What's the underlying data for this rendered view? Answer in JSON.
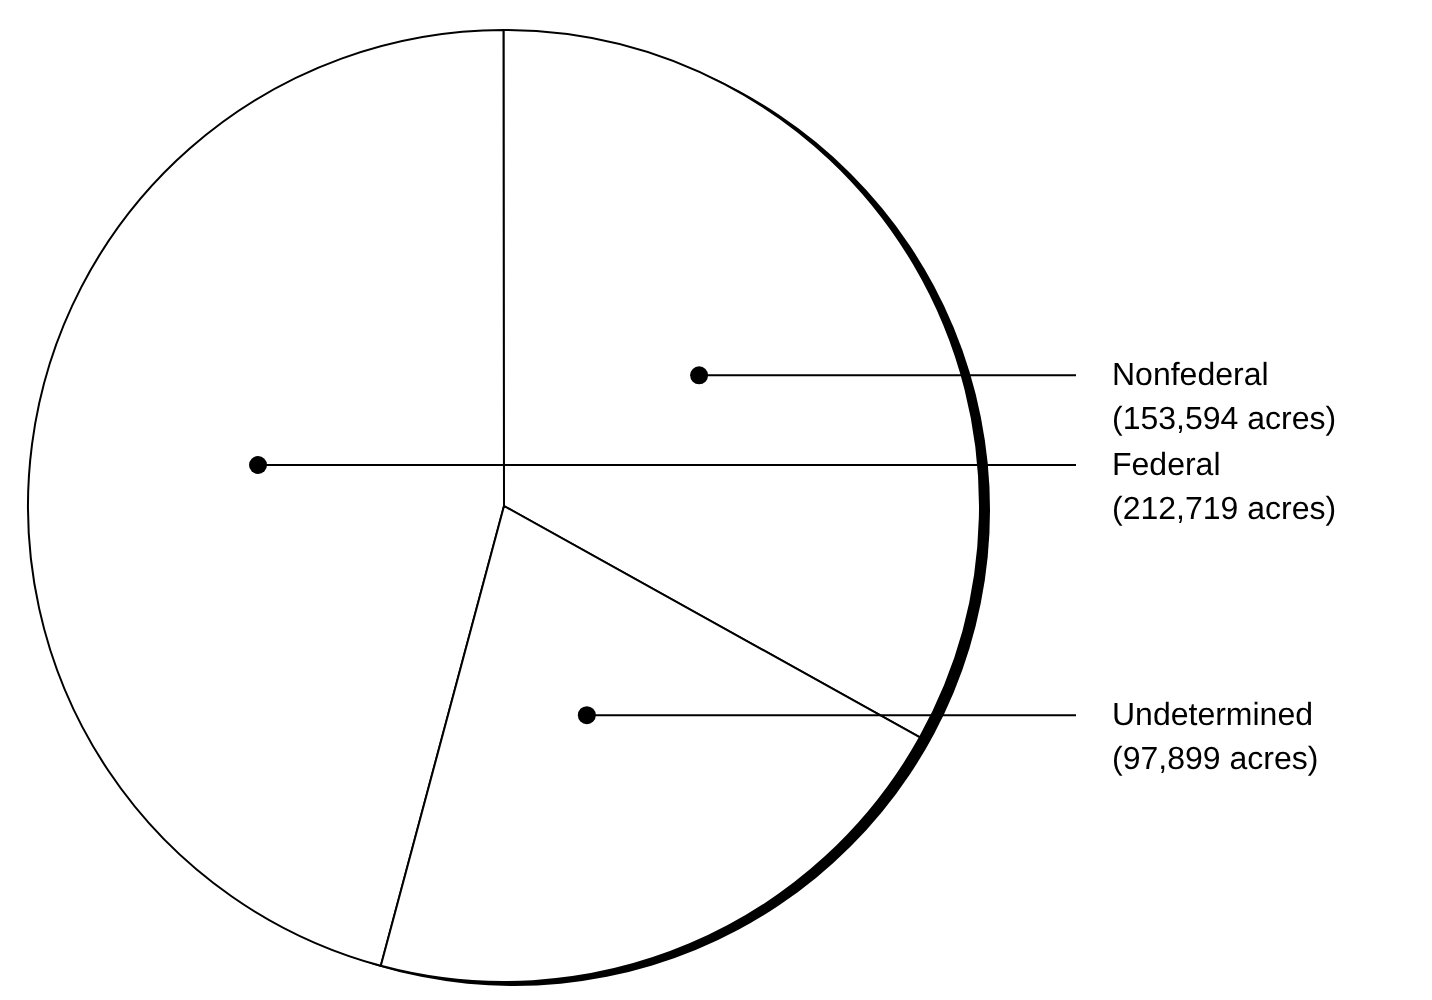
{
  "chart_data": {
    "type": "pie",
    "categories": [
      "Federal",
      "Nonfederal",
      "Undetermined"
    ],
    "values": [
      212719,
      153594,
      97899
    ],
    "value_labels": [
      "(212,719 acres)",
      "(153,594 acres)",
      "(97,899 acres)"
    ],
    "colors": [
      "#ffffff",
      "#ffffff",
      "#ffffff"
    ]
  }
}
